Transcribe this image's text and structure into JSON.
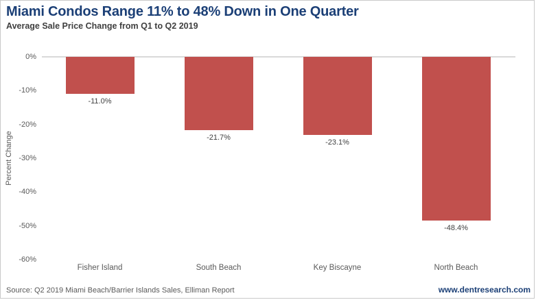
{
  "header": {
    "title": "Miami Condos Range 11% to 48% Down in One Quarter",
    "subtitle": "Average Sale Price Change from Q1 to Q2 2019"
  },
  "chart_data": {
    "type": "bar",
    "title": "Miami Condos Range 11% to 48% Down in One Quarter",
    "subtitle": "Average Sale Price Change from Q1 to Q2 2019",
    "categories": [
      "Fisher Island",
      "South Beach",
      "Key Biscayne",
      "North Beach"
    ],
    "values": [
      -11.0,
      -21.7,
      -23.1,
      -48.4
    ],
    "value_labels": [
      "-11.0%",
      "-21.7%",
      "-23.1%",
      "-48.4%"
    ],
    "xlabel": "",
    "ylabel": "Percent Change",
    "ylim": [
      -60,
      0
    ],
    "ytick_step": 10,
    "yticks": [
      "0%",
      "-10%",
      "-20%",
      "-30%",
      "-40%",
      "-50%",
      "-60%"
    ],
    "grid": "zero-line-only",
    "legend": "none"
  },
  "footer": {
    "source": "Source: Q2 2019 Miami Beach/Barrier Islands Sales, Elliman Report",
    "website": "www.dentresearch.com"
  },
  "colors": {
    "bar_red": "#c1504d",
    "title_navy": "#1b3f76",
    "axis_text": "#595959",
    "value_text": "#404040",
    "zero_line": "#d9d9d9",
    "frame_border": "#c9c9c9"
  }
}
